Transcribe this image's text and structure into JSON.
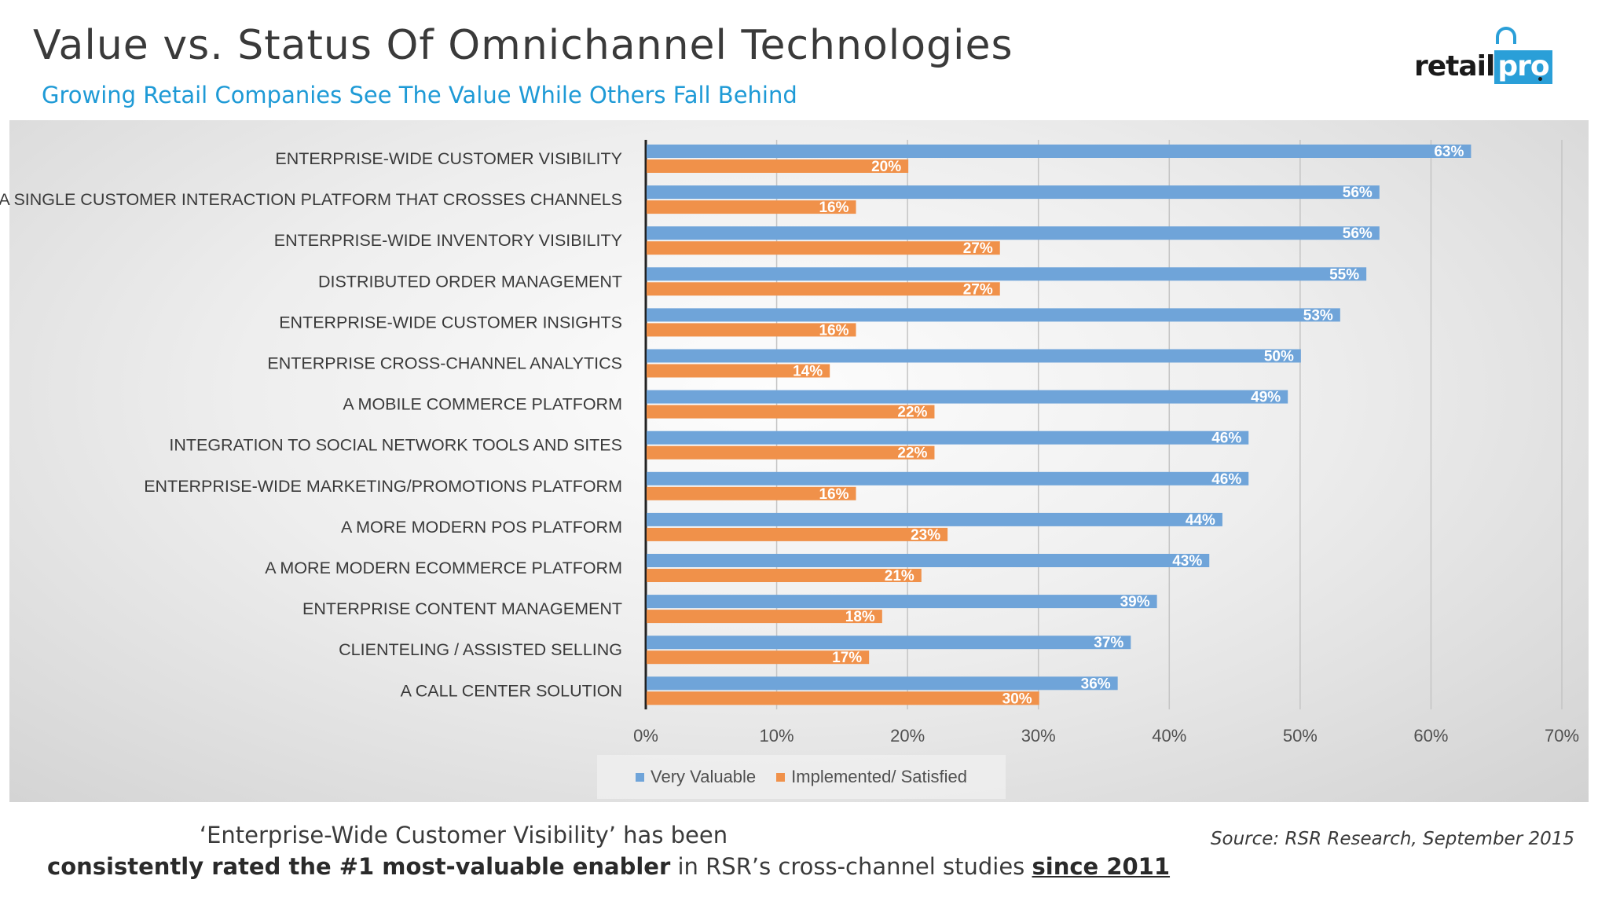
{
  "header": {
    "title": "Value vs. Status Of Omnichannel Technologies",
    "subtitle": "Growing Retail Companies See The Value While Others Fall Behind",
    "logo_text_main": "retail",
    "logo_text_accent": "pro"
  },
  "colors": {
    "very_valuable": "#6fa4d9",
    "implemented": "#f0914a",
    "title": "#3a3a3a",
    "subtitle": "#1e9ad6"
  },
  "chart_data": {
    "type": "bar",
    "orientation": "horizontal",
    "categories": [
      "ENTERPRISE-WIDE CUSTOMER VISIBILITY",
      "A SINGLE CUSTOMER INTERACTION PLATFORM THAT CROSSES CHANNELS",
      "ENTERPRISE-WIDE INVENTORY VISIBILITY",
      "DISTRIBUTED ORDER MANAGEMENT",
      "ENTERPRISE-WIDE CUSTOMER INSIGHTS",
      "ENTERPRISE CROSS-CHANNEL ANALYTICS",
      "A MOBILE COMMERCE PLATFORM",
      "INTEGRATION TO SOCIAL NETWORK TOOLS AND SITES",
      "ENTERPRISE-WIDE MARKETING/PROMOTIONS PLATFORM",
      "A MORE MODERN POS PLATFORM",
      "A MORE MODERN ECOMMERCE PLATFORM",
      "ENTERPRISE CONTENT MANAGEMENT",
      "CLIENTELING / ASSISTED SELLING",
      "A CALL CENTER SOLUTION"
    ],
    "series": [
      {
        "name": "Very Valuable",
        "values": [
          63,
          56,
          56,
          55,
          53,
          50,
          49,
          46,
          46,
          44,
          43,
          39,
          37,
          36
        ]
      },
      {
        "name": "Implemented/ Satisfied",
        "values": [
          20,
          16,
          27,
          27,
          16,
          14,
          22,
          22,
          16,
          23,
          21,
          18,
          17,
          30
        ]
      }
    ],
    "xlim": [
      0,
      70
    ],
    "xticks": [
      "0%",
      "10%",
      "20%",
      "30%",
      "40%",
      "50%",
      "60%",
      "70%"
    ],
    "value_suffix": "%",
    "grid": true,
    "legend_position": "bottom"
  },
  "footer": {
    "line1": "‘Enterprise-Wide Customer Visibility’ has been",
    "line2_bold": "consistently rated the #1 most-valuable enabler",
    "line2_middle": " in RSR’s cross-channel studies ",
    "line2_underlined": "since 2011",
    "source": "Source: RSR Research, September 2015"
  }
}
